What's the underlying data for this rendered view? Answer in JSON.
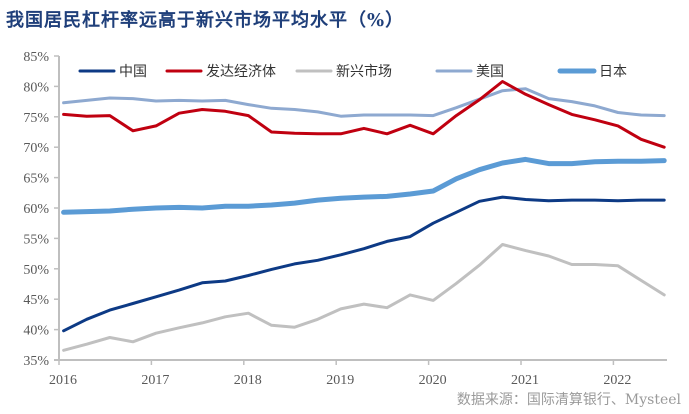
{
  "title": "我国居民杠杆率远高于新兴市场平均水平（%）",
  "source": "数据来源：国际清算银行、Mysteel",
  "chart_data": {
    "type": "line",
    "title": "我国居民杠杆率远高于新兴市场平均水平（%）",
    "xlabel": "",
    "ylabel": "",
    "ylim": [
      35,
      85
    ],
    "yticks": [
      "35%",
      "40%",
      "45%",
      "50%",
      "55%",
      "60%",
      "65%",
      "70%",
      "75%",
      "80%",
      "85%"
    ],
    "ytick_values": [
      35,
      40,
      45,
      50,
      55,
      60,
      65,
      70,
      75,
      80,
      85
    ],
    "xticks": [
      "2016",
      "2017",
      "2018",
      "2019",
      "2020",
      "2021",
      "2022"
    ],
    "xtick_values": [
      2016,
      2017,
      2018,
      2019,
      2020,
      2021,
      2022
    ],
    "xlim": [
      2016,
      2022.58
    ],
    "x": [
      2016.05,
      2016.3,
      2016.55,
      2016.8,
      2017.05,
      2017.3,
      2017.55,
      2017.8,
      2018.05,
      2018.3,
      2018.55,
      2018.8,
      2019.05,
      2019.3,
      2019.55,
      2019.8,
      2020.05,
      2020.3,
      2020.55,
      2020.8,
      2021.05,
      2021.3,
      2021.55,
      2021.8,
      2022.05,
      2022.3,
      2022.55
    ],
    "grid": false,
    "legend": "top",
    "series": [
      {
        "name": "中国",
        "color": "#0d3a85",
        "width": 3,
        "values": [
          39.8,
          41.7,
          43.2,
          44.3,
          45.4,
          46.5,
          47.7,
          48.0,
          48.9,
          49.9,
          50.8,
          51.4,
          52.3,
          53.3,
          54.5,
          55.3,
          57.5,
          59.3,
          61.1,
          61.8,
          61.4,
          61.2,
          61.3,
          61.3,
          61.2,
          61.3,
          61.3
        ]
      },
      {
        "name": "发达经济体",
        "color": "#c00010",
        "width": 3,
        "values": [
          75.4,
          75.1,
          75.2,
          72.7,
          73.5,
          75.6,
          76.2,
          75.9,
          75.2,
          72.5,
          72.3,
          72.2,
          72.2,
          73.1,
          72.2,
          73.6,
          72.2,
          75.2,
          77.8,
          80.8,
          78.7,
          77.0,
          75.4,
          74.5,
          73.5,
          71.3,
          70.0
        ]
      },
      {
        "name": "新兴市场",
        "color": "#c0c0c0",
        "width": 3,
        "values": [
          36.6,
          37.6,
          38.7,
          38.0,
          39.4,
          40.3,
          41.1,
          42.1,
          42.7,
          40.7,
          40.4,
          41.7,
          43.4,
          44.2,
          43.6,
          45.7,
          44.8,
          47.6,
          50.6,
          54.0,
          53.0,
          52.1,
          50.7,
          50.7,
          50.5,
          48.1,
          45.7
        ]
      },
      {
        "name": "美国",
        "color": "#8ea9d0",
        "width": 3,
        "values": [
          77.3,
          77.7,
          78.1,
          78.0,
          77.6,
          77.7,
          77.6,
          77.7,
          77.0,
          76.4,
          76.2,
          75.8,
          75.1,
          75.3,
          75.3,
          75.3,
          75.2,
          76.5,
          77.9,
          79.3,
          79.6,
          78.0,
          77.5,
          76.8,
          75.7,
          75.3,
          75.2
        ]
      },
      {
        "name": "日本",
        "color": "#5b9bd5",
        "width": 5,
        "values": [
          59.3,
          59.4,
          59.5,
          59.8,
          60.0,
          60.1,
          60.0,
          60.3,
          60.3,
          60.5,
          60.8,
          61.3,
          61.6,
          61.8,
          61.9,
          62.3,
          62.8,
          64.8,
          66.3,
          67.4,
          68.0,
          67.3,
          67.3,
          67.6,
          67.7,
          67.7,
          67.8
        ]
      }
    ]
  }
}
